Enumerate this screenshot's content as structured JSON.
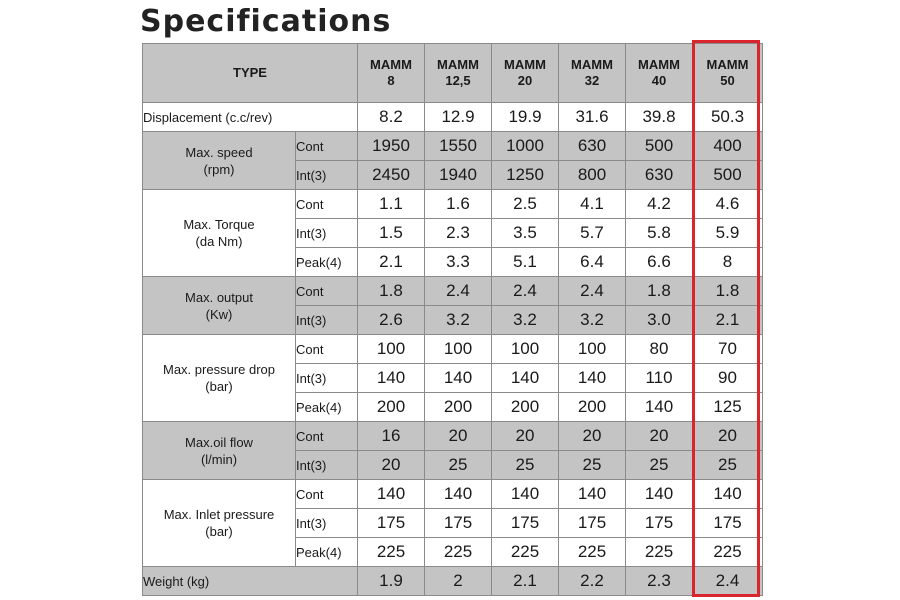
{
  "title": "Specifications",
  "type_label": "TYPE",
  "models": [
    {
      "name": "MAMM",
      "size": "8"
    },
    {
      "name": "MAMM",
      "size": "12,5"
    },
    {
      "name": "MAMM",
      "size": "20"
    },
    {
      "name": "MAMM",
      "size": "32"
    },
    {
      "name": "MAMM",
      "size": "40"
    },
    {
      "name": "MAMM",
      "size": "50"
    }
  ],
  "highlight_color": "#d9262e",
  "header_shade_color": "#c4c4c4",
  "highlighted_model": "MAMM 50",
  "displacement": {
    "label": "Displacement (c.c/rev)",
    "values": [
      "8.2",
      "12.9",
      "19.9",
      "31.6",
      "39.8",
      "50.3"
    ]
  },
  "speed": {
    "name": "Max. speed",
    "unit": "(rpm)",
    "rows": [
      {
        "sub": "Cont",
        "values": [
          "1950",
          "1550",
          "1000",
          "630",
          "500",
          "400"
        ]
      },
      {
        "sub": "Int(3)",
        "values": [
          "2450",
          "1940",
          "1250",
          "800",
          "630",
          "500"
        ]
      }
    ]
  },
  "torque": {
    "name": "Max. Torque",
    "unit": "(da Nm)",
    "rows": [
      {
        "sub": "Cont",
        "values": [
          "1.1",
          "1.6",
          "2.5",
          "4.1",
          "4.2",
          "4.6"
        ]
      },
      {
        "sub": "Int(3)",
        "values": [
          "1.5",
          "2.3",
          "3.5",
          "5.7",
          "5.8",
          "5.9"
        ]
      },
      {
        "sub": "Peak(4)",
        "values": [
          "2.1",
          "3.3",
          "5.1",
          "6.4",
          "6.6",
          "8"
        ]
      }
    ]
  },
  "output": {
    "name": "Max. output",
    "unit": "(Kw)",
    "rows": [
      {
        "sub": "Cont",
        "values": [
          "1.8",
          "2.4",
          "2.4",
          "2.4",
          "1.8",
          "1.8"
        ]
      },
      {
        "sub": "Int(3)",
        "values": [
          "2.6",
          "3.2",
          "3.2",
          "3.2",
          "3.0",
          "2.1"
        ]
      }
    ]
  },
  "pressure_drop": {
    "name": "Max. pressure drop",
    "unit": "(bar)",
    "rows": [
      {
        "sub": "Cont",
        "values": [
          "100",
          "100",
          "100",
          "100",
          "80",
          "70"
        ]
      },
      {
        "sub": "Int(3)",
        "values": [
          "140",
          "140",
          "140",
          "140",
          "110",
          "90"
        ]
      },
      {
        "sub": "Peak(4)",
        "values": [
          "200",
          "200",
          "200",
          "200",
          "140",
          "125"
        ]
      }
    ]
  },
  "oil_flow": {
    "name": "Max.oil  flow",
    "unit": "(l/min)",
    "rows": [
      {
        "sub": "Cont",
        "values": [
          "16",
          "20",
          "20",
          "20",
          "20",
          "20"
        ]
      },
      {
        "sub": "Int(3)",
        "values": [
          "20",
          "25",
          "25",
          "25",
          "25",
          "25"
        ]
      }
    ]
  },
  "inlet_pressure": {
    "name": "Max. Inlet pressure",
    "unit": "(bar)",
    "rows": [
      {
        "sub": "Cont",
        "values": [
          "140",
          "140",
          "140",
          "140",
          "140",
          "140"
        ]
      },
      {
        "sub": "Int(3)",
        "values": [
          "175",
          "175",
          "175",
          "175",
          "175",
          "175"
        ]
      },
      {
        "sub": "Peak(4)",
        "values": [
          "225",
          "225",
          "225",
          "225",
          "225",
          "225"
        ]
      }
    ]
  },
  "weight": {
    "label": "Weight  (kg)",
    "values": [
      "1.9",
      "2",
      "2.1",
      "2.2",
      "2.3",
      "2.4"
    ]
  }
}
